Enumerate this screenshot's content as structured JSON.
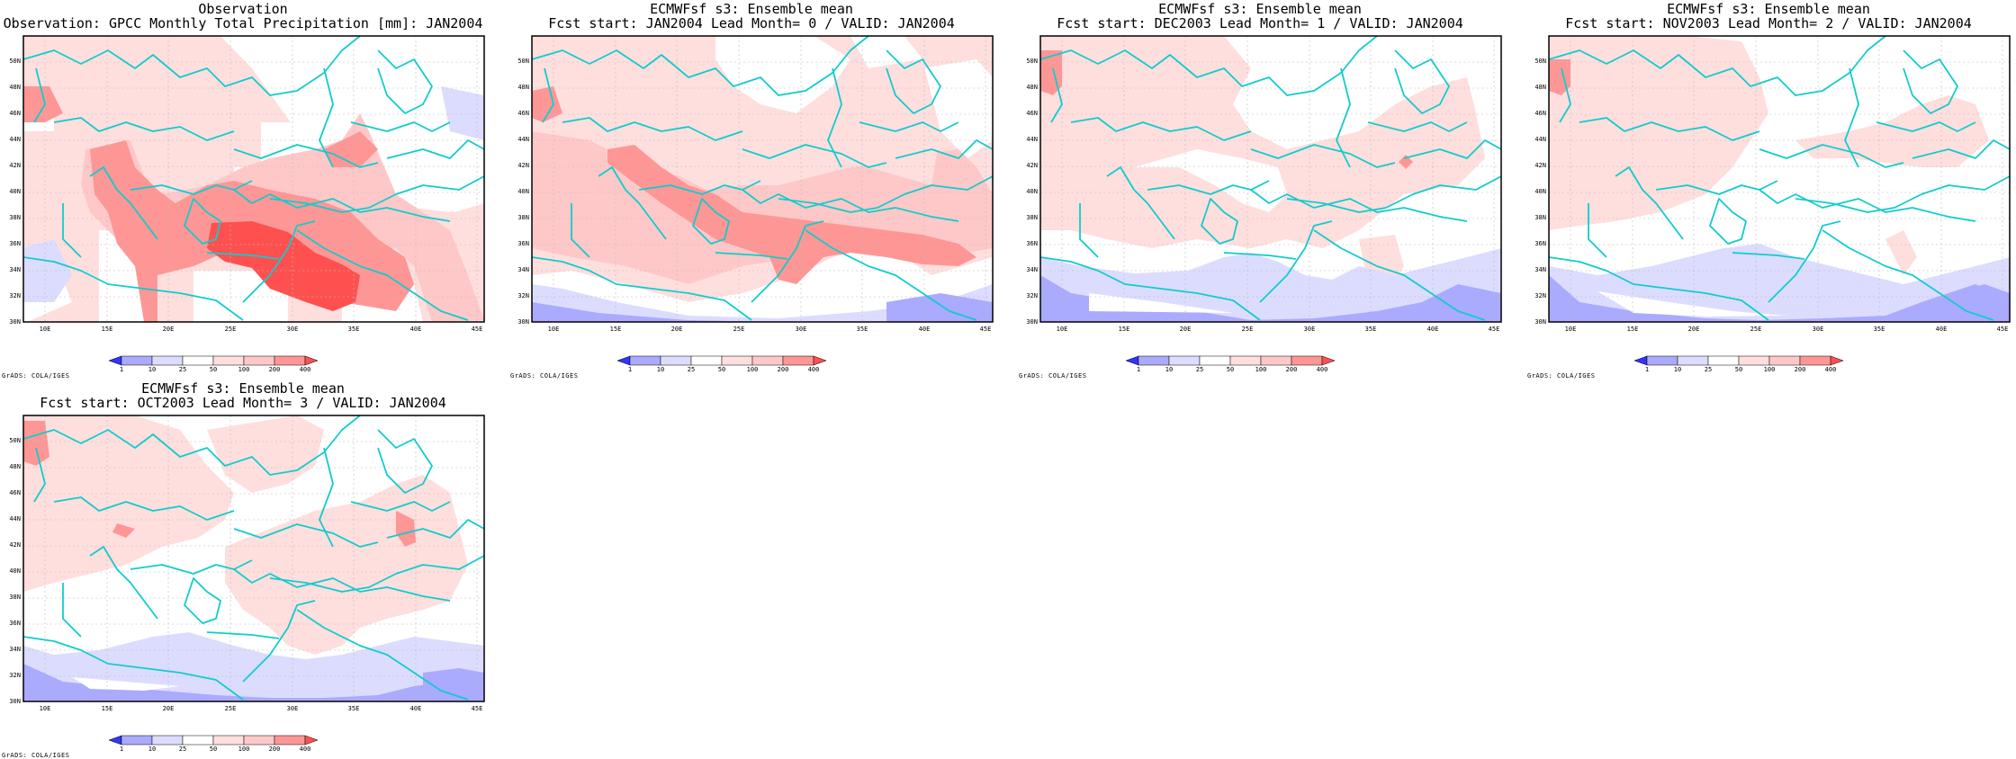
{
  "legend": {
    "colors": [
      "#3333ff",
      "#aaaaff",
      "#dcdcff",
      "#ffffff",
      "#ffdede",
      "#ffc8c8",
      "#ff9696",
      "#ff5050"
    ],
    "labels": [
      "1",
      "10",
      "25",
      "50",
      "100",
      "200",
      "400"
    ]
  },
  "map": {
    "lon_ticks": [
      "10E",
      "15E",
      "20E",
      "25E",
      "30E",
      "35E",
      "40E",
      "45E"
    ],
    "lat_ticks": [
      "30N",
      "32N",
      "34N",
      "36N",
      "38N",
      "40N",
      "42N",
      "44N",
      "46N",
      "48N",
      "50N"
    ],
    "coastline_color": "#11cccc"
  },
  "grads_label": "GrADS: COLA/IGES",
  "panels": [
    {
      "title1": "Observation",
      "title2": "Observation: GPCC Monthly Total Precipitation [mm]: JAN2004"
    },
    {
      "title1": "ECMWFsf s3: Ensemble mean",
      "title2": "Fcst start: JAN2004  Lead Month= 0 / VALID: JAN2004"
    },
    {
      "title1": "ECMWFsf s3: Ensemble mean",
      "title2": "Fcst start: DEC2003  Lead Month= 1 / VALID: JAN2004"
    },
    {
      "title1": "ECMWFsf s3: Ensemble mean",
      "title2": "Fcst start: NOV2003  Lead Month= 2 / VALID: JAN2004"
    },
    {
      "title1": "ECMWFsf s3: Ensemble mean",
      "title2": "Fcst start: OCT2003  Lead Month= 3 / VALID: JAN2004"
    }
  ]
}
